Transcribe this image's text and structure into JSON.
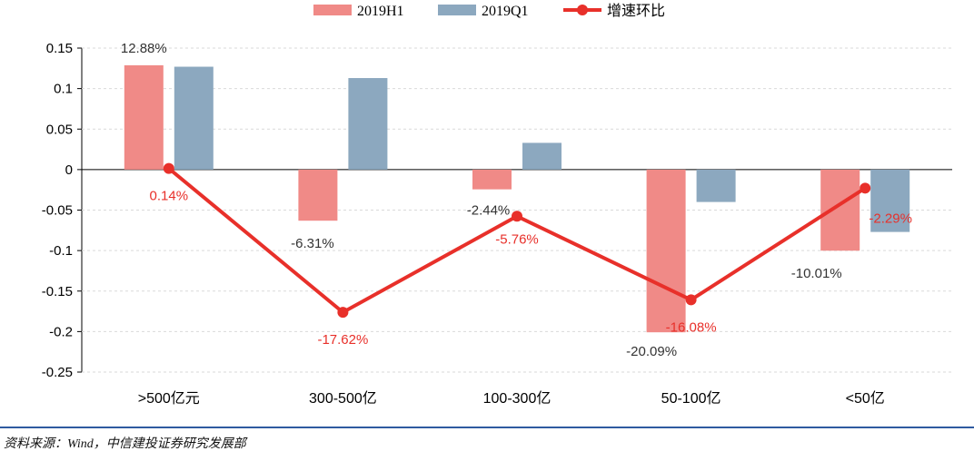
{
  "chart_data": {
    "type": "bar",
    "categories": [
      ">500亿元",
      "300-500亿",
      "100-300亿",
      "50-100亿",
      "<50亿"
    ],
    "series": [
      {
        "name": "2019H1",
        "kind": "bar",
        "color": "#f08a87",
        "values": [
          0.1288,
          -0.0631,
          -0.0244,
          -0.2009,
          -0.1001
        ],
        "labels": [
          "12.88%",
          "-6.31%",
          "-2.44%",
          "-20.09%",
          "-10.01%"
        ]
      },
      {
        "name": "2019Q1",
        "kind": "bar",
        "color": "#8ca8bf",
        "values": [
          0.127,
          0.113,
          0.033,
          -0.04,
          -0.077
        ]
      },
      {
        "name": "增速环比",
        "kind": "line",
        "color": "#e8302a",
        "values": [
          0.0014,
          -0.1762,
          -0.0576,
          -0.1608,
          -0.0229
        ],
        "labels": [
          "0.14%",
          "-17.62%",
          "-5.76%",
          "-16.08%",
          "-2.29%"
        ]
      }
    ],
    "ylim": [
      -0.25,
      0.15
    ],
    "yticks": [
      "0.15",
      "0.1",
      "0.05",
      "0",
      "-0.05",
      "-0.1",
      "-0.15",
      "-0.2",
      "-0.25"
    ],
    "grid": true,
    "legend": "top-center"
  },
  "source": "资料来源：Wind，中信建投证券研究发展部"
}
